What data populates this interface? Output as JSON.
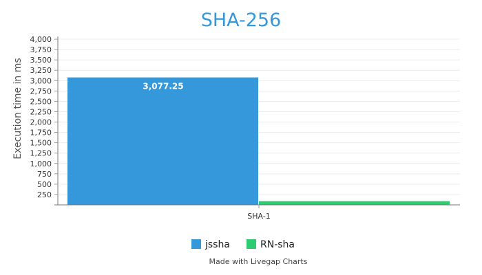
{
  "chart_data": {
    "type": "bar",
    "title": "SHA-256",
    "xlabel": "",
    "ylabel": "Execution time in ms",
    "categories": [
      "SHA-1"
    ],
    "series": [
      {
        "name": "jssha",
        "values": [
          3077.25
        ],
        "color": "#3498db",
        "label": "3,077.25"
      },
      {
        "name": "RN-sha",
        "values": [
          90
        ],
        "color": "#2ecc71",
        "label": ""
      }
    ],
    "ylim": [
      0,
      4000
    ],
    "yticks": [
      "250",
      "500",
      "750",
      "1,000",
      "1,250",
      "1,500",
      "1,750",
      "2,000",
      "2,250",
      "2,500",
      "2,750",
      "3,000",
      "3,250",
      "3,500",
      "3,750",
      "4,000"
    ],
    "ytick_values": [
      250,
      500,
      750,
      1000,
      1250,
      1500,
      1750,
      2000,
      2250,
      2500,
      2750,
      3000,
      3250,
      3500,
      3750,
      4000
    ],
    "grid": true,
    "legend_position": "bottom"
  },
  "credit": "Made with Livegap Charts"
}
